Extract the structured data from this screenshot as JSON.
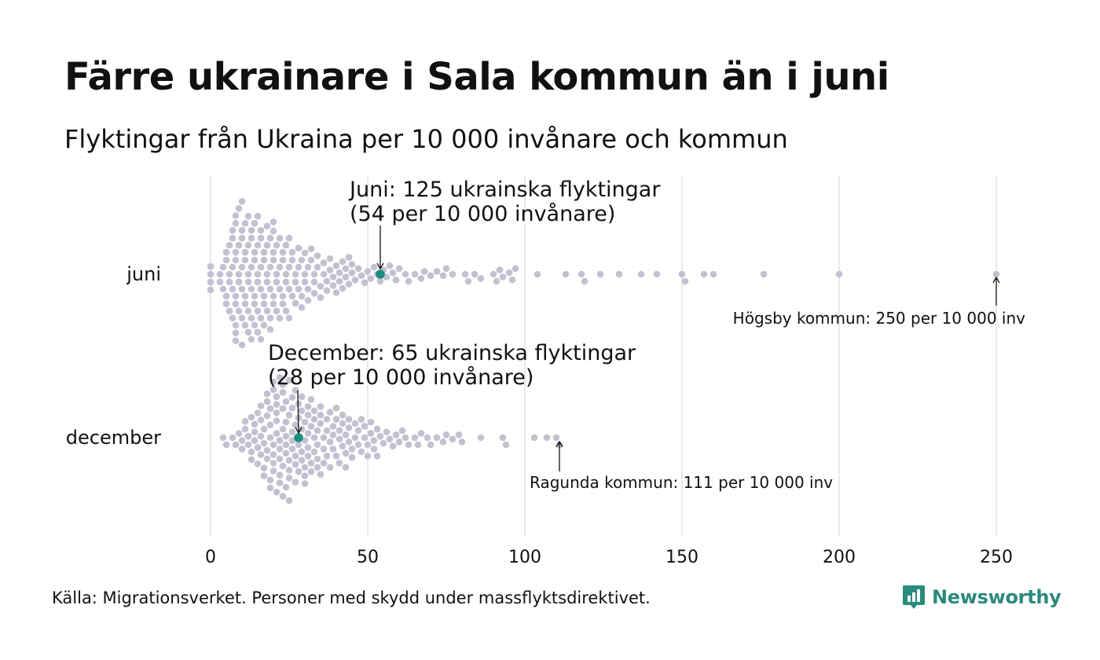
{
  "header": {
    "title": "Färre ukrainare i Sala kommun än i juni",
    "subtitle": "Flyktingar från Ukraina per 10 000 invånare och kommun"
  },
  "footer": {
    "source": "Källa: Migrationsverket. Personer med skydd under massflyktsdirektivet.",
    "brand": "Newsworthy",
    "brand_icon": "newsworthy-logo-icon",
    "brand_color": "#2b8a7e"
  },
  "colors": {
    "dot": "#c3c1d1",
    "highlight": "#1a8f80",
    "grid": "#d4d4d4"
  },
  "chart_data": {
    "type": "scatter",
    "variant": "beeswarm",
    "title": "Färre ukrainare i Sala kommun än i juni",
    "subtitle": "Flyktingar från Ukraina per 10 000 invånare och kommun",
    "xlabel": "",
    "ylabel": "",
    "xlim": [
      0,
      250
    ],
    "x_ticks": [
      0,
      50,
      100,
      150,
      200,
      250
    ],
    "x_tick_labels": [
      "0",
      "50",
      "100",
      "150",
      "200",
      "250"
    ],
    "grid": "vertical",
    "categories": [
      "juni",
      "december"
    ],
    "series": [
      {
        "name": "juni",
        "highlight": {
          "municipality": "Sala kommun",
          "value": 54
        },
        "annotation_main": [
          "Juni: 125 ukrainska flyktingar",
          "(54 per 10 000 invånare)"
        ],
        "annotation_max": "Högsby kommun: 250 per 10 000 inv",
        "max_value": 250,
        "values": [
          0,
          0,
          0,
          0,
          3,
          3,
          4,
          4,
          5,
          5,
          5,
          5,
          6,
          6,
          6,
          6,
          7,
          7,
          7,
          7,
          7,
          8,
          8,
          8,
          8,
          8,
          8,
          8,
          8,
          8,
          9,
          9,
          9,
          9,
          9,
          10,
          10,
          10,
          10,
          10,
          10,
          10,
          11,
          11,
          11,
          11,
          11,
          11,
          12,
          12,
          12,
          12,
          12,
          12,
          13,
          13,
          13,
          13,
          13,
          13,
          14,
          14,
          14,
          14,
          14,
          14,
          15,
          15,
          15,
          15,
          15,
          15,
          16,
          16,
          16,
          16,
          16,
          16,
          17,
          17,
          17,
          17,
          17,
          18,
          18,
          18,
          18,
          18,
          19,
          19,
          19,
          19,
          19,
          20,
          20,
          20,
          20,
          20,
          20,
          21,
          21,
          21,
          21,
          22,
          22,
          22,
          22,
          23,
          23,
          23,
          23,
          24,
          24,
          24,
          24,
          25,
          25,
          25,
          25,
          26,
          26,
          26,
          27,
          27,
          27,
          28,
          28,
          28,
          29,
          29,
          29,
          30,
          30,
          30,
          31,
          31,
          31,
          32,
          32,
          33,
          33,
          33,
          34,
          34,
          35,
          35,
          36,
          36,
          37,
          37,
          38,
          38,
          39,
          39,
          40,
          40,
          41,
          41,
          42,
          42,
          43,
          43,
          44,
          44,
          45,
          45,
          46,
          47,
          48,
          49,
          50,
          51,
          52,
          53,
          54,
          55,
          56,
          57,
          58,
          59,
          60,
          62,
          63,
          65,
          67,
          68,
          70,
          72,
          74,
          75,
          77,
          81,
          82,
          84,
          86,
          90,
          91,
          92,
          93,
          95,
          96,
          97,
          104,
          113,
          118,
          119,
          124,
          130,
          137,
          142,
          150,
          151,
          157,
          160,
          176,
          200,
          250
        ]
      },
      {
        "name": "december",
        "highlight": {
          "municipality": "Sala kommun",
          "value": 28
        },
        "annotation_main": [
          "December:  65 ukrainska flyktingar",
          "(28 per 10 000 invånare)"
        ],
        "annotation_max": "Ragunda kommun: 111 per 10 000 inv",
        "max_value": 111,
        "values": [
          4,
          5,
          7,
          8,
          9,
          10,
          10,
          11,
          11,
          12,
          12,
          13,
          13,
          13,
          14,
          14,
          14,
          15,
          15,
          15,
          16,
          16,
          16,
          16,
          17,
          17,
          17,
          17,
          18,
          18,
          18,
          18,
          18,
          19,
          19,
          19,
          19,
          19,
          20,
          20,
          20,
          20,
          20,
          20,
          21,
          21,
          21,
          21,
          21,
          21,
          22,
          22,
          22,
          22,
          22,
          22,
          23,
          23,
          23,
          23,
          23,
          23,
          24,
          24,
          24,
          24,
          24,
          24,
          25,
          25,
          25,
          25,
          25,
          25,
          26,
          26,
          26,
          26,
          26,
          27,
          27,
          27,
          27,
          27,
          28,
          28,
          28,
          28,
          28,
          29,
          29,
          29,
          29,
          29,
          30,
          30,
          30,
          30,
          30,
          31,
          31,
          31,
          31,
          31,
          32,
          32,
          32,
          32,
          33,
          33,
          33,
          33,
          34,
          34,
          34,
          34,
          35,
          35,
          35,
          35,
          36,
          36,
          36,
          37,
          37,
          37,
          38,
          38,
          38,
          39,
          39,
          39,
          40,
          40,
          40,
          41,
          41,
          41,
          42,
          42,
          42,
          43,
          43,
          43,
          44,
          44,
          44,
          45,
          45,
          46,
          46,
          47,
          47,
          48,
          48,
          49,
          49,
          50,
          50,
          51,
          51,
          52,
          52,
          53,
          53,
          54,
          55,
          56,
          57,
          58,
          59,
          60,
          61,
          62,
          63,
          65,
          66,
          67,
          69,
          70,
          72,
          74,
          75,
          77,
          79,
          80,
          86,
          93,
          94,
          103,
          107,
          110,
          111
        ]
      }
    ]
  }
}
